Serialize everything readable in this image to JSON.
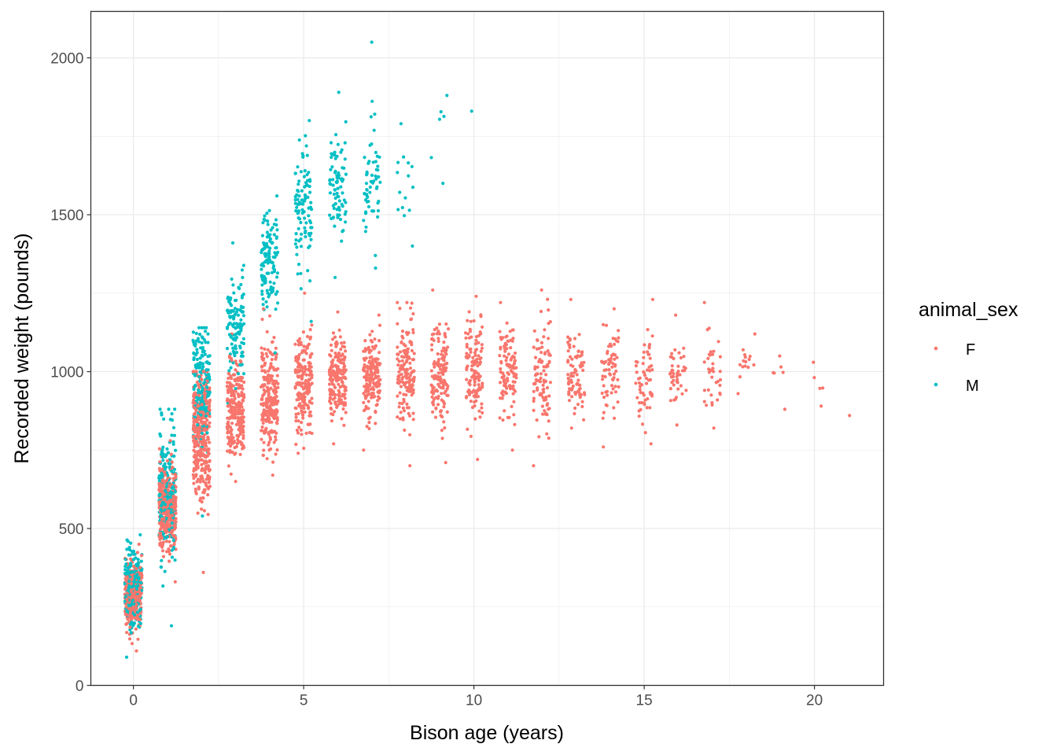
{
  "chart_data": {
    "type": "scatter",
    "title": "",
    "xlabel": "Bison age (years)",
    "ylabel": "Recorded weight (pounds)",
    "xlim": [
      -1.25,
      22.03
    ],
    "ylim": [
      0,
      2148
    ],
    "xticks": [
      0,
      5,
      10,
      15,
      20
    ],
    "yticks": [
      0,
      500,
      1000,
      1500,
      2000
    ],
    "grid": true,
    "jitter_width_years": 0.25,
    "legend": {
      "title": "animal_sex",
      "placement": "right",
      "entries": [
        "F",
        "M"
      ]
    },
    "colors": {
      "F": "#F8766D",
      "M": "#00BFC4"
    },
    "note_series_format": "clusters per age: [age, min_weight, max_weight, center_weight, approx_count]",
    "series": [
      {
        "name": "F",
        "clusters": [
          [
            0,
            110,
            450,
            290,
            300
          ],
          [
            1,
            330,
            780,
            560,
            350
          ],
          [
            2,
            360,
            1000,
            800,
            350
          ],
          [
            3,
            650,
            1120,
            880,
            250
          ],
          [
            4,
            670,
            1200,
            920,
            250
          ],
          [
            5,
            740,
            1250,
            960,
            200
          ],
          [
            6,
            770,
            1190,
            980,
            180
          ],
          [
            7,
            750,
            1180,
            990,
            170
          ],
          [
            8,
            700,
            1220,
            1000,
            150
          ],
          [
            9,
            710,
            1260,
            1000,
            140
          ],
          [
            10,
            720,
            1240,
            1010,
            130
          ],
          [
            11,
            750,
            1220,
            1000,
            110
          ],
          [
            12,
            700,
            1260,
            990,
            100
          ],
          [
            13,
            820,
            1230,
            990,
            80
          ],
          [
            14,
            760,
            1200,
            1000,
            70
          ],
          [
            15,
            770,
            1230,
            990,
            60
          ],
          [
            16,
            830,
            1180,
            990,
            45
          ],
          [
            17,
            820,
            1220,
            990,
            35
          ],
          [
            18,
            930,
            1120,
            1030,
            15
          ],
          [
            19,
            880,
            1050,
            970,
            6
          ],
          [
            20,
            890,
            1030,
            960,
            5
          ],
          [
            21,
            860,
            860,
            860,
            1
          ]
        ]
      },
      {
        "name": "M",
        "clusters": [
          [
            0,
            90,
            480,
            310,
            250
          ],
          [
            1,
            190,
            880,
            620,
            200
          ],
          [
            2,
            540,
            1140,
            950,
            200
          ],
          [
            3,
            900,
            1410,
            1150,
            120
          ],
          [
            4,
            1060,
            1560,
            1350,
            120
          ],
          [
            5,
            1160,
            1800,
            1520,
            100
          ],
          [
            6,
            1300,
            1890,
            1580,
            80
          ],
          [
            7,
            1330,
            2050,
            1630,
            60
          ],
          [
            8,
            1400,
            1790,
            1620,
            15
          ],
          [
            9,
            1600,
            1880,
            1760,
            6
          ],
          [
            10,
            1830,
            1830,
            1830,
            1
          ]
        ]
      }
    ]
  }
}
